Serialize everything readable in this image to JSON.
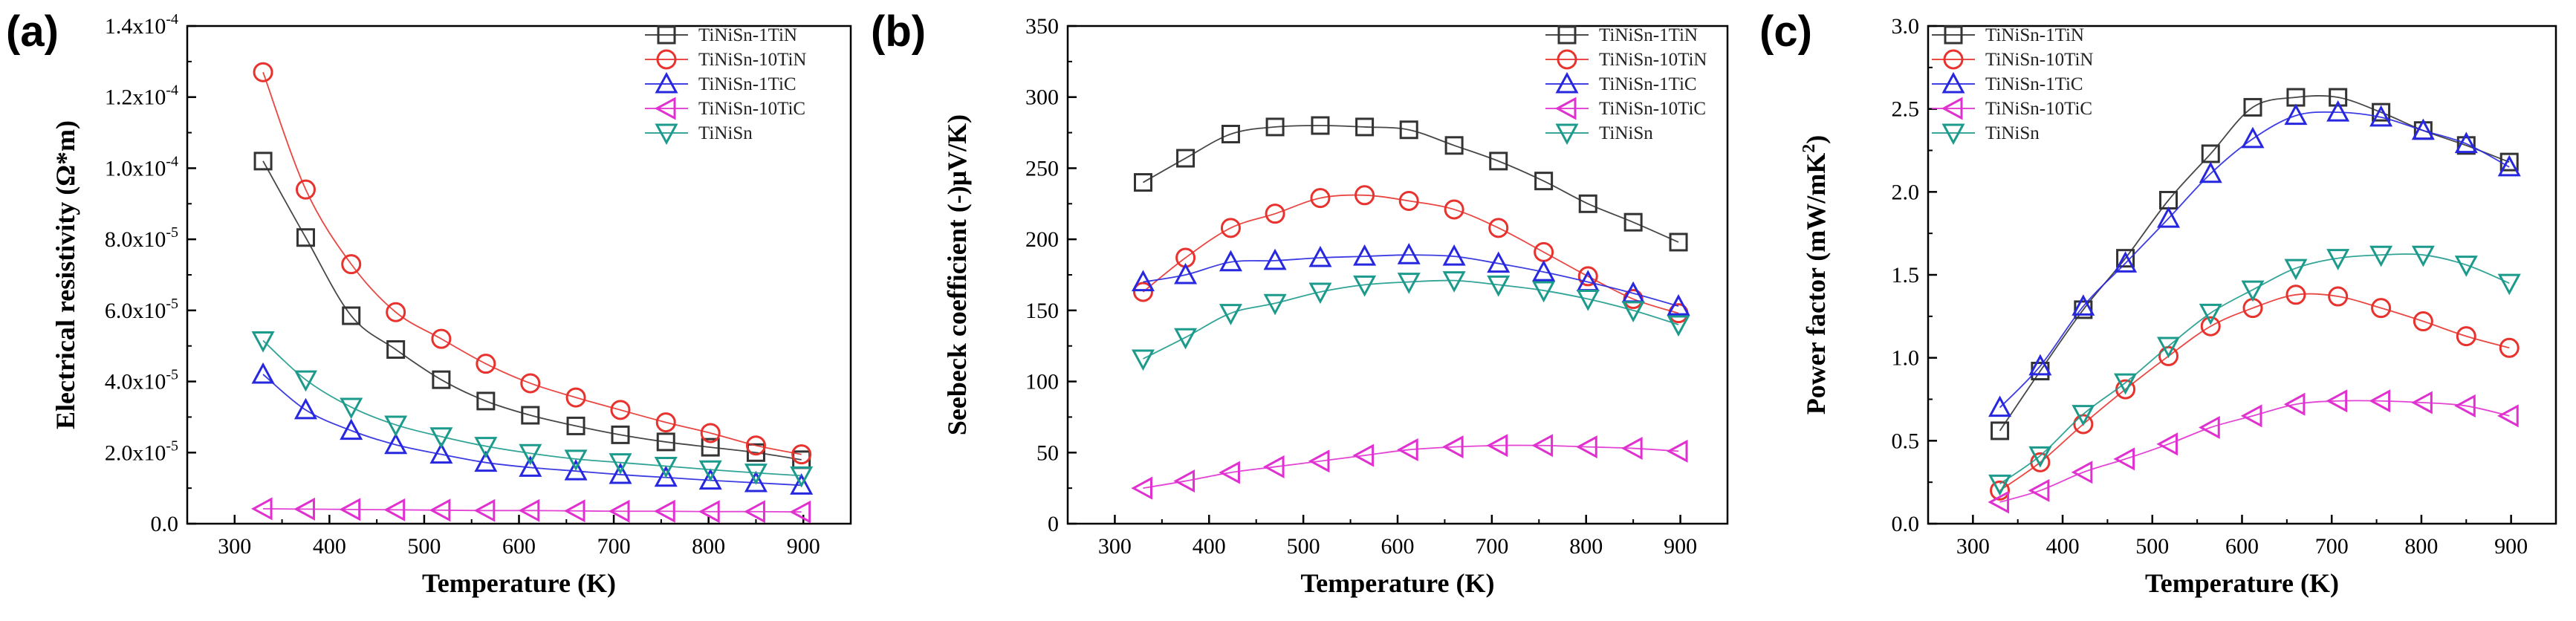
{
  "chart_data": [
    {
      "type": "line",
      "panel": "(a)",
      "xlabel": "Temperature (K)",
      "ylabel": "Electrical resistivity (Ω*m)",
      "xlim": [
        250,
        950
      ],
      "ylim": [
        0,
        0.00014
      ],
      "x_ticks": [
        300,
        400,
        500,
        600,
        700,
        800,
        900
      ],
      "x_tick_labels": [
        "300",
        "400",
        "500",
        "600",
        "700",
        "800",
        "900"
      ],
      "y_ticks": [
        0,
        2e-05,
        4e-05,
        6e-05,
        8e-05,
        0.0001,
        0.00012,
        0.00014
      ],
      "y_tick_labels": [
        {
          "mant": "0.0",
          "exp": ""
        },
        {
          "mant": "2.0x10",
          "exp": "-5"
        },
        {
          "mant": "4.0x10",
          "exp": "-5"
        },
        {
          "mant": "6.0x10",
          "exp": "-5"
        },
        {
          "mant": "8.0x10",
          "exp": "-5"
        },
        {
          "mant": "1.0x10",
          "exp": "-4"
        },
        {
          "mant": "1.2x10",
          "exp": "-4"
        },
        {
          "mant": "1.4x10",
          "exp": "-4"
        }
      ],
      "legend_position": "top-right",
      "x": [
        330,
        375,
        423,
        470,
        518,
        565,
        612,
        660,
        707,
        755,
        802,
        850,
        898
      ],
      "series": [
        {
          "name": "TiNiSn-1TiN",
          "marker": "square",
          "color": "#333333",
          "values": [
            0.000102,
            8.05e-05,
            5.85e-05,
            4.9e-05,
            4.05e-05,
            3.45e-05,
            3.05e-05,
            2.75e-05,
            2.5e-05,
            2.3e-05,
            2.15e-05,
            2e-05,
            1.8e-05
          ]
        },
        {
          "name": "TiNiSn-10TiN",
          "marker": "circle",
          "color": "#e8322e",
          "values": [
            0.000127,
            9.4e-05,
            7.3e-05,
            5.95e-05,
            5.2e-05,
            4.5e-05,
            3.95e-05,
            3.55e-05,
            3.2e-05,
            2.85e-05,
            2.55e-05,
            2.2e-05,
            1.95e-05
          ]
        },
        {
          "name": "TiNiSn-1TiC",
          "marker": "triangle-up",
          "color": "#2727e0",
          "values": [
            4.2e-05,
            3.2e-05,
            2.62e-05,
            2.22e-05,
            1.95e-05,
            1.72e-05,
            1.58e-05,
            1.48e-05,
            1.38e-05,
            1.3e-05,
            1.22e-05,
            1.15e-05,
            1.08e-05
          ]
        },
        {
          "name": "TiNiSn-10TiC",
          "marker": "triangle-left",
          "color": "#e030d0",
          "values": [
            4.2e-06,
            4.1e-06,
            4e-06,
            3.9e-06,
            3.8e-06,
            3.7e-06,
            3.7e-06,
            3.6e-06,
            3.5e-06,
            3.5e-06,
            3.4e-06,
            3.4e-06,
            3.3e-06
          ]
        },
        {
          "name": "TiNiSn",
          "marker": "triangle-down",
          "color": "#1c9a8c",
          "values": [
            5.15e-05,
            4.05e-05,
            3.28e-05,
            2.78e-05,
            2.45e-05,
            2.18e-05,
            1.98e-05,
            1.82e-05,
            1.72e-05,
            1.62e-05,
            1.52e-05,
            1.43e-05,
            1.35e-05
          ]
        }
      ]
    },
    {
      "type": "line",
      "panel": "(b)",
      "xlabel": "Temperature (K)",
      "ylabel": "Seebeck coefficient (-)μV/K)",
      "xlim": [
        250,
        950
      ],
      "ylim": [
        0,
        350
      ],
      "x_ticks": [
        300,
        400,
        500,
        600,
        700,
        800,
        900
      ],
      "x_tick_labels": [
        "300",
        "400",
        "500",
        "600",
        "700",
        "800",
        "900"
      ],
      "y_ticks": [
        0,
        50,
        100,
        150,
        200,
        250,
        300,
        350
      ],
      "y_tick_labels": [
        {
          "mant": "0",
          "exp": ""
        },
        {
          "mant": "50",
          "exp": ""
        },
        {
          "mant": "100",
          "exp": ""
        },
        {
          "mant": "150",
          "exp": ""
        },
        {
          "mant": "200",
          "exp": ""
        },
        {
          "mant": "250",
          "exp": ""
        },
        {
          "mant": "300",
          "exp": ""
        },
        {
          "mant": "350",
          "exp": ""
        }
      ],
      "legend_position": "top-right",
      "x": [
        330,
        375,
        423,
        470,
        518,
        565,
        612,
        660,
        707,
        755,
        802,
        850,
        898
      ],
      "series": [
        {
          "name": "TiNiSn-1TiN",
          "marker": "square",
          "color": "#333333",
          "values": [
            240,
            257,
            274,
            279,
            280,
            279,
            277,
            266,
            255,
            241,
            225,
            212,
            198
          ]
        },
        {
          "name": "TiNiSn-10TiN",
          "marker": "circle",
          "color": "#e8322e",
          "values": [
            163,
            187,
            208,
            218,
            229,
            231,
            227,
            221,
            208,
            191,
            174,
            158,
            148
          ]
        },
        {
          "name": "TiNiSn-1TiC",
          "marker": "triangle-up",
          "color": "#2727e0",
          "values": [
            170,
            175,
            184,
            185,
            187,
            188,
            189,
            188,
            183,
            177,
            170,
            162,
            153
          ]
        },
        {
          "name": "TiNiSn-10TiC",
          "marker": "triangle-left",
          "color": "#e030d0",
          "values": [
            25,
            30,
            36,
            40,
            44,
            48,
            52,
            54,
            55,
            55,
            54,
            53,
            51
          ]
        },
        {
          "name": "TiNiSn",
          "marker": "triangle-down",
          "color": "#1c9a8c",
          "values": [
            116,
            131,
            148,
            155,
            163,
            168,
            170,
            171,
            168,
            164,
            158,
            150,
            140
          ]
        }
      ]
    },
    {
      "type": "line",
      "panel": "(c)",
      "xlabel": "Temperature (K)",
      "ylabel": "Power factor (mW/mK",
      "ylabel_sup": "2",
      "ylabel_tail": ")",
      "xlim": [
        250,
        950
      ],
      "ylim": [
        0,
        3.0
      ],
      "x_ticks": [
        300,
        400,
        500,
        600,
        700,
        800,
        900
      ],
      "x_tick_labels": [
        "300",
        "400",
        "500",
        "600",
        "700",
        "800",
        "900"
      ],
      "y_ticks": [
        0,
        0.5,
        1.0,
        1.5,
        2.0,
        2.5,
        3.0
      ],
      "y_tick_labels": [
        {
          "mant": "0.0",
          "exp": ""
        },
        {
          "mant": "0.5",
          "exp": ""
        },
        {
          "mant": "1.0",
          "exp": ""
        },
        {
          "mant": "1.5",
          "exp": ""
        },
        {
          "mant": "2.0",
          "exp": ""
        },
        {
          "mant": "2.5",
          "exp": ""
        },
        {
          "mant": "3.0",
          "exp": ""
        }
      ],
      "legend_position": "top-left",
      "x": [
        330,
        375,
        423,
        470,
        518,
        565,
        612,
        660,
        707,
        755,
        802,
        850,
        898
      ],
      "series": [
        {
          "name": "TiNiSn-1TiN",
          "marker": "square",
          "color": "#333333",
          "values": [
            0.56,
            0.92,
            1.29,
            1.6,
            1.95,
            2.23,
            2.51,
            2.57,
            2.57,
            2.48,
            2.37,
            2.28,
            2.18
          ]
        },
        {
          "name": "TiNiSn-10TiN",
          "marker": "circle",
          "color": "#e8322e",
          "values": [
            0.2,
            0.37,
            0.6,
            0.81,
            1.01,
            1.19,
            1.3,
            1.38,
            1.37,
            1.3,
            1.22,
            1.13,
            1.06
          ]
        },
        {
          "name": "TiNiSn-1TiC",
          "marker": "triangle-up",
          "color": "#2727e0",
          "values": [
            0.7,
            0.95,
            1.31,
            1.57,
            1.84,
            2.11,
            2.32,
            2.46,
            2.48,
            2.45,
            2.37,
            2.29,
            2.15
          ]
        },
        {
          "name": "TiNiSn-10TiC",
          "marker": "triangle-left",
          "color": "#e030d0",
          "values": [
            0.13,
            0.2,
            0.31,
            0.39,
            0.48,
            0.58,
            0.65,
            0.72,
            0.74,
            0.74,
            0.73,
            0.71,
            0.65
          ]
        },
        {
          "name": "TiNiSn",
          "marker": "triangle-down",
          "color": "#1c9a8c",
          "values": [
            0.24,
            0.41,
            0.66,
            0.85,
            1.07,
            1.27,
            1.41,
            1.54,
            1.6,
            1.62,
            1.62,
            1.56,
            1.45
          ]
        }
      ]
    }
  ]
}
